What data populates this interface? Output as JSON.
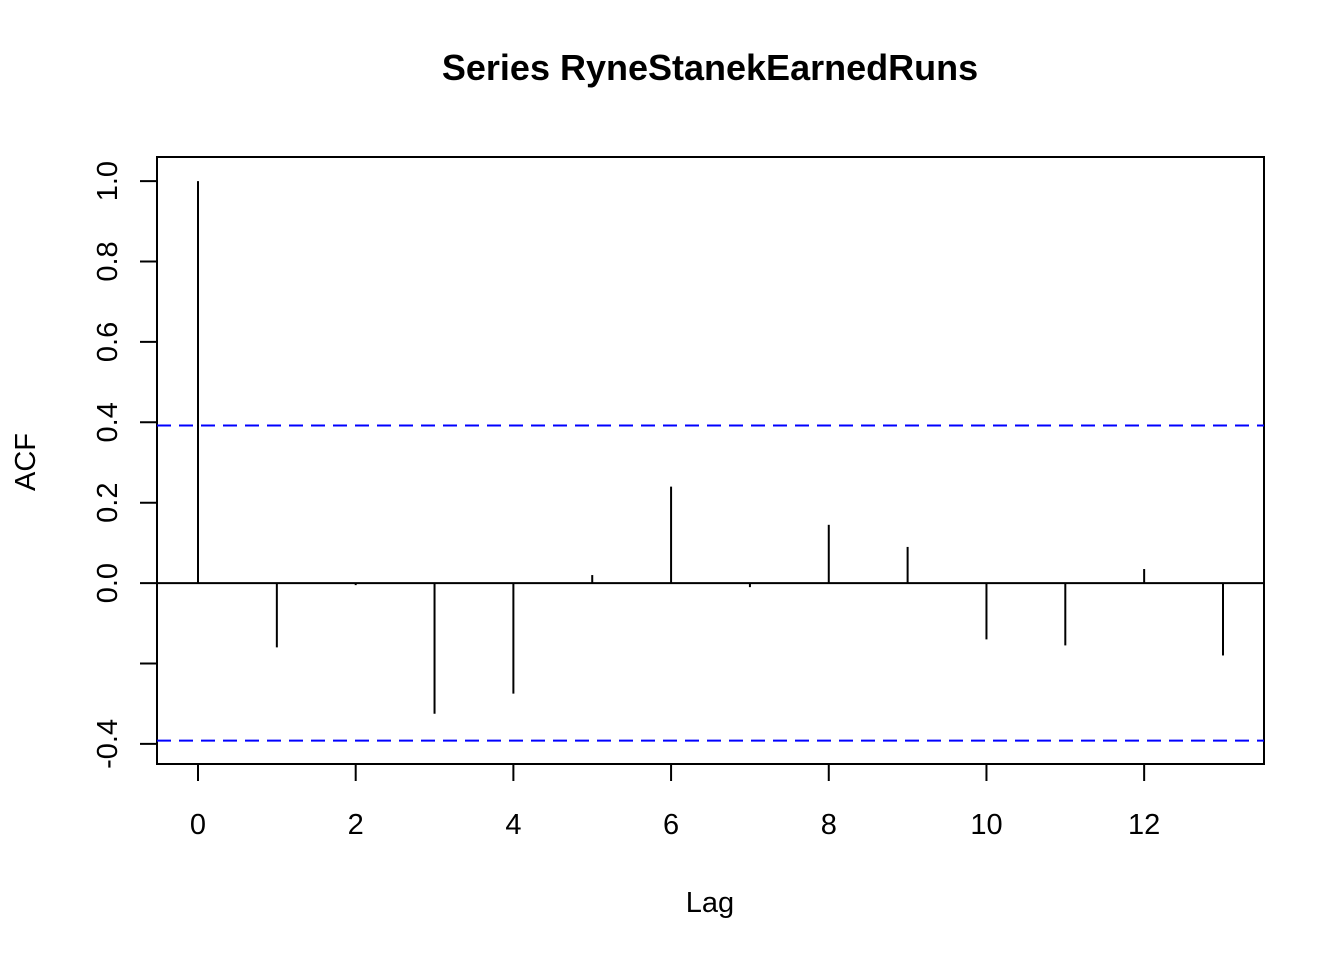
{
  "chart_data": {
    "type": "bar",
    "title": "Series  RyneStanekEarnedRuns",
    "xlabel": "Lag",
    "ylabel": "ACF",
    "x": [
      0,
      1,
      2,
      3,
      4,
      5,
      6,
      7,
      8,
      9,
      10,
      11,
      12,
      13
    ],
    "values": [
      1.0,
      -0.16,
      -0.005,
      -0.325,
      -0.275,
      0.02,
      0.24,
      -0.01,
      0.145,
      0.09,
      -0.14,
      -0.155,
      0.035,
      -0.18
    ],
    "xlim": [
      -0.52,
      13.52
    ],
    "ylim": [
      -0.45,
      1.06
    ],
    "x_ticks": [
      0,
      2,
      4,
      6,
      8,
      10,
      12
    ],
    "x_tick_labels": [
      "0",
      "2",
      "4",
      "6",
      "8",
      "10",
      "12"
    ],
    "y_ticks": [
      -0.4,
      -0.2,
      0.0,
      0.2,
      0.4,
      0.6,
      0.8,
      1.0
    ],
    "y_tick_labels": [
      "-0.4",
      "",
      "0.0",
      "0.2",
      "0.4",
      "0.6",
      "0.8",
      "1.0"
    ],
    "confidence_bounds": [
      0.392,
      -0.392
    ],
    "confidence_color": "#0000ff",
    "grid": false
  }
}
